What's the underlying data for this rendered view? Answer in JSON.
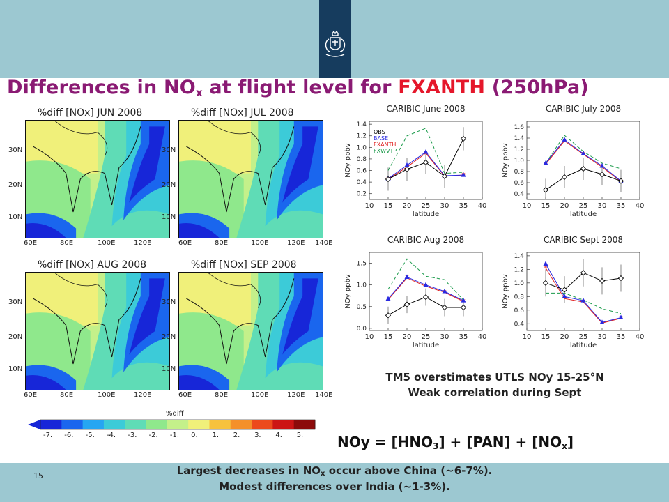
{
  "slide": {
    "title_prefix": "Differences in NO",
    "title_sub": "x",
    "title_mid": " at flight level for ",
    "title_highlight": "FXANTH",
    "title_suffix": " (250hPa)",
    "page_number": "15",
    "caption_line1": "TM5 overstimates UTLS NOy 15-25°N",
    "caption_line2": "Weak correlation during Sept",
    "formula": {
      "a": "NOy = [HNO",
      "a_sub": "3",
      "b": "] + [PAN] + [NO",
      "b_sub": "x",
      "c": "]"
    },
    "footer_line1_a": "Largest decreases in NO",
    "footer_line1_sub": "x",
    "footer_line1_b": " occur above China (~6-7%).",
    "footer_line2": "Modest differences over India (~1-3%).",
    "colors": {
      "band": "#9cc8d1",
      "logo": "#163c5e",
      "title": "#8a1a73",
      "highlight": "#e5172b"
    },
    "logo_icon": "royal-coat-of-arms-icon"
  },
  "maps": [
    {
      "title": "%diff [NOx] JUN 2008",
      "lat_labels": [
        "30N",
        "20N",
        "10N"
      ],
      "lon_labels": [
        "60E",
        "80E",
        "100E",
        "120E"
      ]
    },
    {
      "title": "%diff [NOx] JUL 2008",
      "lat_labels": [
        "30N",
        "20N",
        "10N"
      ],
      "lon_labels": [
        "60E",
        "80E",
        "100E",
        "120E",
        "140E"
      ]
    },
    {
      "title": "%diff [NOx] AUG 2008",
      "lat_labels": [
        "30N",
        "20N",
        "10N"
      ],
      "lon_labels": [
        "60E",
        "80E",
        "100E",
        "120E"
      ]
    },
    {
      "title": "%diff [NOx] SEP 2008",
      "lat_labels": [
        "30N",
        "20N",
        "10N"
      ],
      "lon_labels": [
        "60E",
        "80E",
        "100E",
        "120E",
        "140E"
      ]
    }
  ],
  "colorbar": {
    "title": "%diff",
    "labels": [
      "-7.",
      "-6.",
      "-5.",
      "-4.",
      "-3.",
      "-2.",
      "-1.",
      "0.",
      "1.",
      "2.",
      "3.",
      "4.",
      "5."
    ],
    "colors": [
      "#1726d8",
      "#1a66ee",
      "#26a6f2",
      "#3ccbd8",
      "#5fdcb6",
      "#8fe88c",
      "#c4f08a",
      "#f0f07a",
      "#f7c23e",
      "#f4902a",
      "#ec4a1c",
      "#cc1414",
      "#8c0a0a"
    ]
  },
  "chart_data": [
    {
      "type": "line",
      "title": "CARIBIC June 2008",
      "xlabel": "latitude",
      "ylabel": "NOy ppbv",
      "xlim": [
        10,
        40
      ],
      "ylim": [
        0.1,
        1.45
      ],
      "xticks": [
        10,
        15,
        20,
        25,
        30,
        35,
        40
      ],
      "yticks": [
        0.2,
        0.4,
        0.6,
        0.8,
        1.0,
        1.2,
        1.4
      ],
      "x": [
        15,
        20,
        25,
        30,
        35
      ],
      "legend": [
        "OBS",
        "BASE",
        "FXANTH",
        "FXWVTP"
      ],
      "series": [
        {
          "name": "OBS",
          "color": "#000000",
          "dash": "solid",
          "marker": "diamond",
          "values": [
            0.45,
            0.62,
            0.74,
            0.5,
            1.15
          ]
        },
        {
          "name": "BASE",
          "color": "#2a2ae0",
          "dash": "solid",
          "marker": "triangle",
          "values": [
            0.46,
            0.69,
            0.92,
            0.51,
            0.52
          ]
        },
        {
          "name": "FXANTH",
          "color": "#e02020",
          "dash": "solid",
          "marker": "star",
          "values": [
            0.45,
            0.66,
            0.9,
            0.5,
            0.52
          ]
        },
        {
          "name": "FXWVTP",
          "color": "#1a9a4a",
          "dash": "dashed",
          "marker": "none",
          "values": [
            0.6,
            1.2,
            1.33,
            0.55,
            0.57
          ]
        }
      ]
    },
    {
      "type": "line",
      "title": "CARIBIC July 2008",
      "xlabel": "latitude",
      "ylabel": "NOy ppbv",
      "xlim": [
        10,
        40
      ],
      "ylim": [
        0.3,
        1.7
      ],
      "xticks": [
        10,
        15,
        20,
        25,
        30,
        35,
        40
      ],
      "yticks": [
        0.4,
        0.6,
        0.8,
        1.0,
        1.2,
        1.4,
        1.6
      ],
      "x": [
        15,
        20,
        25,
        30,
        35
      ],
      "series": [
        {
          "name": "OBS",
          "color": "#000000",
          "dash": "solid",
          "marker": "diamond",
          "values": [
            0.47,
            0.7,
            0.85,
            0.75,
            0.63
          ]
        },
        {
          "name": "BASE",
          "color": "#2a2ae0",
          "dash": "solid",
          "marker": "triangle",
          "values": [
            0.95,
            1.37,
            1.12,
            0.9,
            0.63
          ]
        },
        {
          "name": "FXANTH",
          "color": "#e02020",
          "dash": "solid",
          "marker": "star",
          "values": [
            0.93,
            1.35,
            1.11,
            0.88,
            0.62
          ]
        },
        {
          "name": "FXWVTP",
          "color": "#1a9a4a",
          "dash": "dashed",
          "marker": "none",
          "values": [
            0.95,
            1.45,
            1.16,
            0.95,
            0.85
          ]
        }
      ]
    },
    {
      "type": "line",
      "title": "CARIBIC Aug 2008",
      "xlabel": "latitude",
      "ylabel": "NOy ppbv",
      "xlim": [
        10,
        40
      ],
      "ylim": [
        -0.05,
        1.75
      ],
      "xticks": [
        10,
        15,
        20,
        25,
        30,
        35,
        40
      ],
      "yticks": [
        0.0,
        0.5,
        1.0,
        1.5
      ],
      "x": [
        15,
        20,
        25,
        30,
        35
      ],
      "series": [
        {
          "name": "OBS",
          "color": "#000000",
          "dash": "solid",
          "marker": "diamond",
          "values": [
            0.3,
            0.55,
            0.72,
            0.48,
            0.48
          ]
        },
        {
          "name": "BASE",
          "color": "#2a2ae0",
          "dash": "solid",
          "marker": "triangle",
          "values": [
            0.68,
            1.18,
            1.0,
            0.85,
            0.64
          ]
        },
        {
          "name": "FXANTH",
          "color": "#e02020",
          "dash": "solid",
          "marker": "star",
          "values": [
            0.66,
            1.16,
            0.97,
            0.83,
            0.62
          ]
        },
        {
          "name": "FXWVTP",
          "color": "#1a9a4a",
          "dash": "dashed",
          "marker": "none",
          "values": [
            0.9,
            1.6,
            1.2,
            1.12,
            0.65
          ]
        }
      ]
    },
    {
      "type": "line",
      "title": "CARIBIC Sept 2008",
      "xlabel": "latitude",
      "ylabel": "NOy ppbv",
      "xlim": [
        10,
        40
      ],
      "ylim": [
        0.3,
        1.45
      ],
      "xticks": [
        10,
        15,
        20,
        25,
        30,
        35,
        40
      ],
      "yticks": [
        0.4,
        0.6,
        0.8,
        1.0,
        1.2,
        1.4
      ],
      "x": [
        15,
        20,
        25,
        30,
        35
      ],
      "series": [
        {
          "name": "OBS",
          "color": "#000000",
          "dash": "solid",
          "marker": "diamond",
          "values": [
            1.0,
            0.9,
            1.15,
            1.03,
            1.07
          ]
        },
        {
          "name": "BASE",
          "color": "#2a2ae0",
          "dash": "solid",
          "marker": "triangle",
          "values": [
            1.28,
            0.8,
            0.74,
            0.42,
            0.49
          ]
        },
        {
          "name": "FXANTH",
          "color": "#e02020",
          "dash": "solid",
          "marker": "star",
          "values": [
            1.22,
            0.77,
            0.72,
            0.41,
            0.48
          ]
        },
        {
          "name": "FXWVTP",
          "color": "#1a9a4a",
          "dash": "dashed",
          "marker": "none",
          "values": [
            0.85,
            0.85,
            0.75,
            0.62,
            0.55
          ]
        }
      ]
    }
  ]
}
